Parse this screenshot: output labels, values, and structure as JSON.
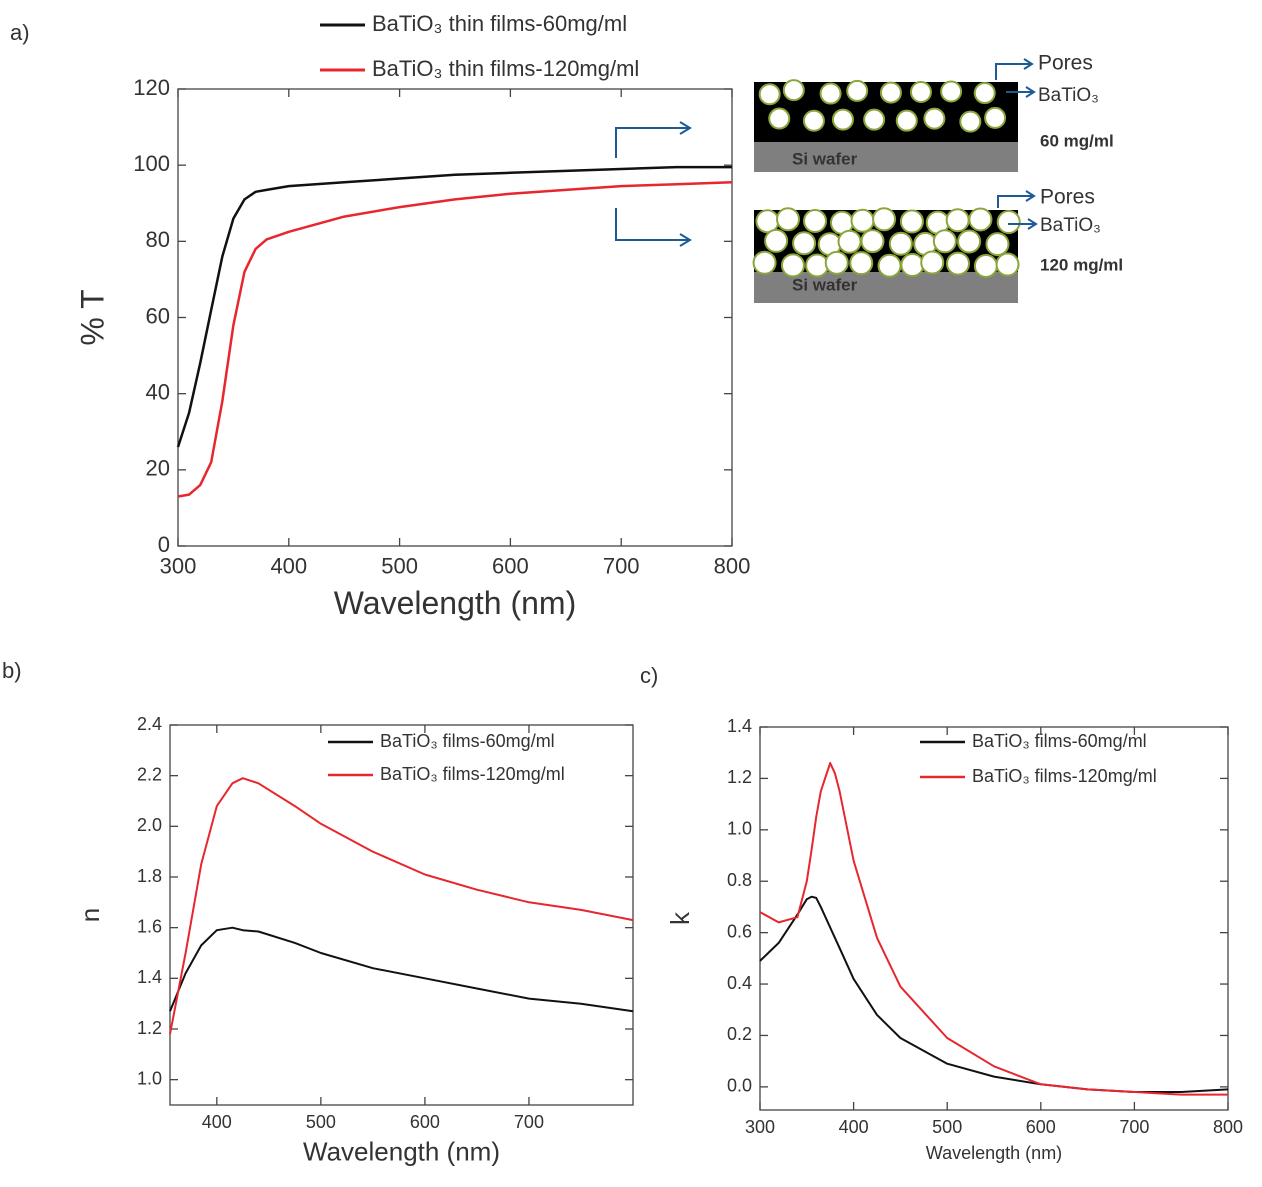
{
  "panels": [
    "a)",
    "b)",
    "c)"
  ],
  "schematic": {
    "top": {
      "pores": "Pores",
      "material": "BaTiO₃",
      "concentration": "60 mg/ml",
      "substrate": "Si wafer"
    },
    "bottom": {
      "pores": "Pores",
      "material": "BaTiO₃",
      "concentration": "120 mg/ml",
      "substrate": "Si wafer"
    }
  },
  "chart_data": [
    {
      "type": "line",
      "x_label": "Wavelength (nm)",
      "y_label": "% T",
      "x": [
        300,
        310,
        320,
        330,
        340,
        350,
        360,
        370,
        380,
        400,
        450,
        500,
        550,
        600,
        650,
        700,
        750,
        800
      ],
      "series": [
        {
          "name": "BaTiO₃ thin films-60mg/ml",
          "color": "#111111",
          "values": [
            26,
            35,
            48,
            62,
            76,
            86,
            91,
            93,
            93.5,
            94.5,
            95.5,
            96.5,
            97.5,
            98,
            98.5,
            99,
            99.5,
            99.5
          ]
        },
        {
          "name": "BaTiO₃ thin films-120mg/ml",
          "color": "#e8262d",
          "values": [
            13,
            13.5,
            16,
            22,
            38,
            58,
            72,
            78,
            80.5,
            82.5,
            86.5,
            89,
            91,
            92.5,
            93.5,
            94.5,
            95,
            95.5
          ]
        }
      ],
      "xlim": [
        300,
        800
      ],
      "xticks": [
        300,
        400,
        500,
        600,
        700,
        800
      ],
      "ylim": [
        0,
        120
      ],
      "yticks": [
        0,
        20,
        40,
        60,
        80,
        100,
        120
      ]
    },
    {
      "type": "line",
      "x_label": "Wavelength (nm)",
      "y_label": "n",
      "x": [
        355,
        370,
        385,
        400,
        415,
        425,
        440,
        475,
        500,
        550,
        600,
        650,
        700,
        750,
        800
      ],
      "series": [
        {
          "name": "BaTiO₃ films-60mg/ml",
          "color": "#111111",
          "values": [
            1.27,
            1.42,
            1.53,
            1.59,
            1.6,
            1.59,
            1.585,
            1.54,
            1.5,
            1.44,
            1.4,
            1.36,
            1.32,
            1.3,
            1.27
          ]
        },
        {
          "name": "BaTiO₃ films-120mg/ml",
          "color": "#e8262d",
          "values": [
            1.18,
            1.5,
            1.85,
            2.08,
            2.17,
            2.19,
            2.17,
            2.08,
            2.01,
            1.9,
            1.81,
            1.75,
            1.7,
            1.67,
            1.63
          ]
        }
      ],
      "xlim": [
        355,
        800
      ],
      "xticks": [
        400,
        500,
        600,
        700
      ],
      "ylim": [
        0.9,
        2.4
      ],
      "yticks": [
        {
          "value": 1,
          "label": "1.0"
        },
        1.2,
        1.4,
        1.6,
        1.8,
        {
          "value": 2,
          "label": "2.0"
        },
        2.2,
        2.4
      ]
    },
    {
      "type": "line",
      "x_label": "Wavelength (nm)",
      "y_label": "k",
      "x": [
        300,
        320,
        340,
        350,
        355,
        360,
        365,
        375,
        380,
        385,
        400,
        425,
        450,
        500,
        550,
        600,
        650,
        700,
        750,
        800
      ],
      "series": [
        {
          "name": "BaTiO₃ films-60mg/ml",
          "color": "#111111",
          "values": [
            0.49,
            0.56,
            0.67,
            0.73,
            0.74,
            0.735,
            0.7,
            0.62,
            0.58,
            0.54,
            0.42,
            0.28,
            0.19,
            0.09,
            0.04,
            0.01,
            -0.01,
            -0.02,
            -0.02,
            -0.01
          ]
        },
        {
          "name": "BaTiO₃ films-120mg/ml",
          "color": "#e8262d",
          "values": [
            0.68,
            0.64,
            0.66,
            0.8,
            0.92,
            1.05,
            1.15,
            1.26,
            1.22,
            1.15,
            0.88,
            0.58,
            0.39,
            0.19,
            0.08,
            0.01,
            -0.01,
            -0.02,
            -0.03,
            -0.03
          ]
        }
      ],
      "xlim": [
        300,
        800
      ],
      "xticks": [
        300,
        400,
        500,
        600,
        700,
        800
      ],
      "ylim": [
        -0.09,
        1.4
      ],
      "yticks": [
        {
          "value": 0,
          "label": "0.0"
        },
        0.2,
        0.4,
        0.6,
        0.8,
        {
          "value": 1,
          "label": "1.0"
        },
        1.2,
        1.4
      ]
    }
  ]
}
